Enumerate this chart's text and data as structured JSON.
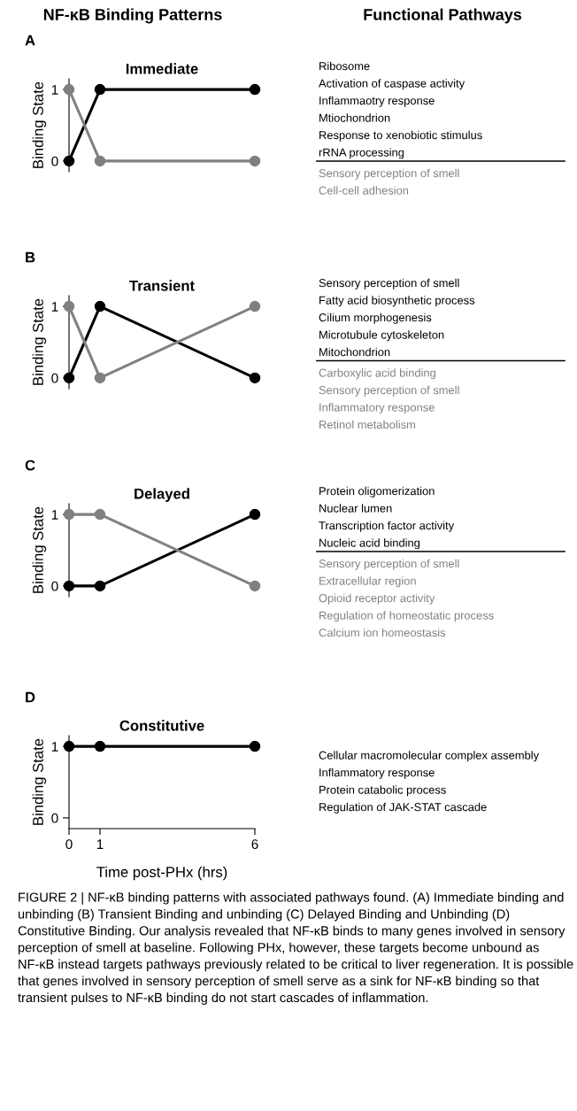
{
  "chart_data": [
    {
      "type": "line",
      "subtitle": "A",
      "title": "Immediate",
      "ylabel": "Binding State",
      "x": [
        0,
        1,
        6
      ],
      "xlim": [
        0,
        6
      ],
      "ylim": [
        -0.15,
        1.15
      ],
      "yticks": [
        0,
        1
      ],
      "tick_labels": "y",
      "marker": "circle",
      "line_style": "solid",
      "grid": false,
      "series": [
        {
          "color": "#000000",
          "values": [
            0,
            1,
            1
          ]
        },
        {
          "color": "#808080",
          "values": [
            1,
            0,
            0
          ]
        }
      ],
      "annotations": [
        "Ribosome\nActivation of caspase activity\nInflammaotry response\nMtiochondrion\nResponse to xenobiotic stimulus\nrRNA processing",
        "Sensory perception of smell\nCell-cell adhesion",
        "NF-κB Binding Patterns",
        "Functional Pathways"
      ]
    },
    {
      "type": "line",
      "subtitle": "B",
      "title": "Transient",
      "ylabel": "Binding State",
      "x": [
        0,
        1,
        6
      ],
      "xlim": [
        0,
        6
      ],
      "ylim": [
        -0.15,
        1.15
      ],
      "yticks": [
        0,
        1
      ],
      "tick_labels": "y",
      "marker": "circle",
      "line_style": "solid",
      "grid": false,
      "series": [
        {
          "color": "#000000",
          "values": [
            0,
            1,
            0
          ]
        },
        {
          "color": "#808080",
          "values": [
            1,
            0,
            1
          ]
        }
      ],
      "annotations": [
        "Sensory perception of smell\nFatty acid biosynthetic process\nCilium morphogenesis\nMicrotubule cytoskeleton\nMitochondrion",
        "Carboxylic acid binding\nSensory perception of smell\nInflammatory response\nRetinol metabolism"
      ]
    },
    {
      "type": "line",
      "subtitle": "C",
      "title": "Delayed",
      "ylabel": "Binding State",
      "x": [
        0,
        1,
        6
      ],
      "xlim": [
        0,
        6
      ],
      "ylim": [
        -0.15,
        1.15
      ],
      "yticks": [
        0,
        1
      ],
      "tick_labels": "y",
      "marker": "circle",
      "line_style": "solid",
      "grid": false,
      "series": [
        {
          "color": "#000000",
          "values": [
            0,
            0,
            1
          ]
        },
        {
          "color": "#808080",
          "values": [
            1,
            1,
            0
          ]
        }
      ],
      "annotations": [
        "Protein oligomerization\nNuclear lumen\nTranscription factor activity\nNucleic acid binding",
        "Sensory perception of smell\nExtracellular region\nOpioid receptor activity\nRegulation of homeostatic process\nCalcium ion homeostasis"
      ]
    },
    {
      "type": "line",
      "subtitle": "D",
      "title": "Constitutive",
      "ylabel": "Binding State",
      "xlabel": "Time post-PHx (hrs)",
      "x": [
        0,
        1,
        6
      ],
      "xlim": [
        0,
        6
      ],
      "xticks": [
        0,
        1,
        6
      ],
      "ylim": [
        -0.15,
        1.15
      ],
      "yticks": [
        0,
        1
      ],
      "marker": "circle",
      "line_style": "solid",
      "grid": false,
      "series": [
        {
          "color": "#000000",
          "values": [
            1,
            1,
            1
          ]
        }
      ],
      "annotations": [
        "Cellular macromolecular complex assembly\nInflammatory response\nProtein catabolic process\nRegulation of JAK-STAT cascade",
        "FIGURE 2 | NF-κB binding patterns with associated pathways found. (A) Immediate binding and unbinding (B) Transient Binding and unbinding (C) Delayed Binding and Unbinding (D) Constitutive Binding. Our analysis revealed that NF-κB binds to many genes involved in sensory perception of smell at baseline. Following PHx, however, these targets become unbound as NF-κB instead targets pathways previously related to be critical to liver regeneration. It is possible that genes involved in sensory perception of smell serve as a sink for NF-κB binding so that transient pulses to NF-κB binding do not start cascades of inflammation."
      ]
    }
  ]
}
